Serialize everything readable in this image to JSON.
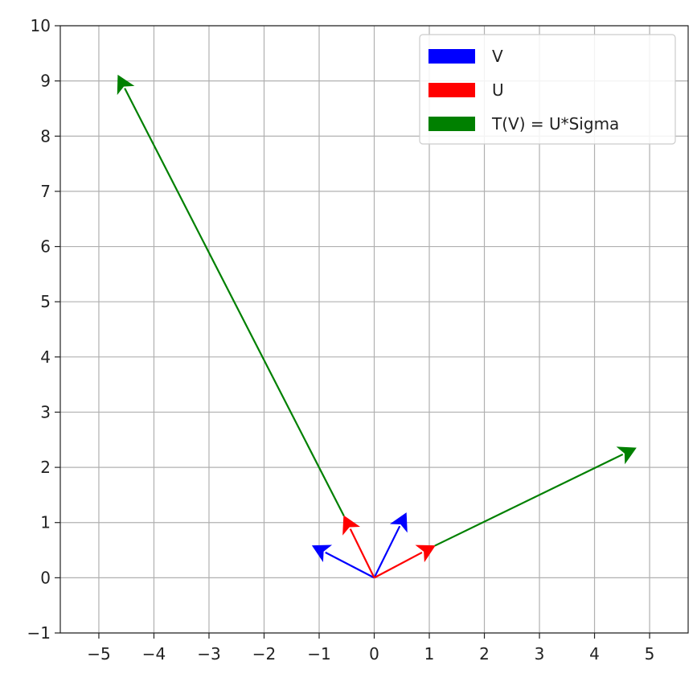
{
  "chart_data": {
    "type": "quiver",
    "title": "",
    "xlabel": "",
    "ylabel": "",
    "xlim": [
      -5.7,
      5.7
    ],
    "ylim": [
      -1,
      10
    ],
    "xticks": [
      -5,
      -4,
      -3,
      -2,
      -1,
      0,
      1,
      2,
      3,
      4,
      5
    ],
    "yticks": [
      -1,
      0,
      1,
      2,
      3,
      4,
      5,
      6,
      7,
      8,
      9,
      10
    ],
    "xtick_labels": [
      "−5",
      "−4",
      "−3",
      "−2",
      "−1",
      "0",
      "1",
      "2",
      "3",
      "4",
      "5"
    ],
    "ytick_labels": [
      "−1",
      "0",
      "1",
      "2",
      "3",
      "4",
      "5",
      "6",
      "7",
      "8",
      "9",
      "10"
    ],
    "grid": true,
    "legend_position": "top-right",
    "series": [
      {
        "name": "V",
        "color": "#0000ff",
        "vectors": [
          {
            "x0": 0,
            "y0": 0,
            "dx": 0.58,
            "dy": 1.17
          },
          {
            "x0": 0,
            "y0": 0,
            "dx": -1.12,
            "dy": 0.58
          }
        ]
      },
      {
        "name": "U",
        "color": "#ff0000",
        "vectors": [
          {
            "x0": 0,
            "y0": 0,
            "dx": -0.55,
            "dy": 1.12
          },
          {
            "x0": 0,
            "y0": 0,
            "dx": 1.1,
            "dy": 0.58
          }
        ]
      },
      {
        "name": "T(V) = U*Sigma",
        "color": "#008000",
        "vectors": [
          {
            "x0": -0.55,
            "y0": 1.12,
            "dx": -4.1,
            "dy": 7.98
          },
          {
            "x0": 1.1,
            "y0": 0.58,
            "dx": 3.65,
            "dy": 1.77
          }
        ]
      }
    ]
  }
}
